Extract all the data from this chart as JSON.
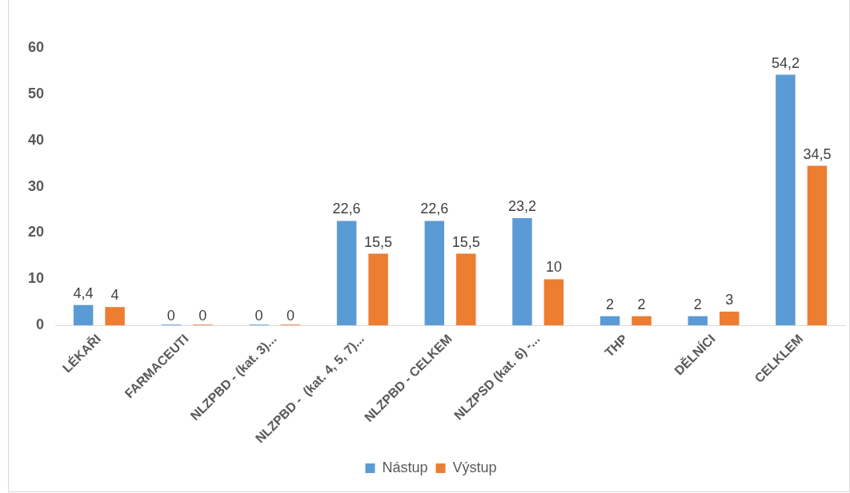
{
  "chart_data": {
    "type": "bar",
    "categories": [
      "LÉKAŘI",
      "FARMACEUTI",
      "NLZPBD - (kat. 3)...",
      "NLZPBD -  (kat. 4, 5, 7)...",
      "NLZPBD - CELKEM",
      "NLZPSD (kat. 6) -...",
      "THP",
      "DĚLNÍCI",
      "CELKLEM"
    ],
    "series": [
      {
        "name": "Nástup",
        "color": "#5b9bd5",
        "values": [
          4.4,
          0,
          0,
          22.6,
          22.6,
          23.2,
          2,
          2,
          54.2
        ],
        "value_labels": [
          "4,4",
          "0",
          "0",
          "22,6",
          "22,6",
          "23,2",
          "2",
          "2",
          "54,2"
        ]
      },
      {
        "name": "Výstup",
        "color": "#ed7d31",
        "values": [
          4,
          0,
          0,
          15.5,
          15.5,
          10,
          2,
          3,
          34.5
        ],
        "value_labels": [
          "4",
          "0",
          "0",
          "15,5",
          "15,5",
          "10",
          "2",
          "3",
          "34,5"
        ]
      }
    ],
    "ylim": [
      0,
      60
    ],
    "yticks": [
      0,
      10,
      20,
      30,
      40,
      50,
      60
    ],
    "grid": false,
    "legend": "bottom"
  }
}
